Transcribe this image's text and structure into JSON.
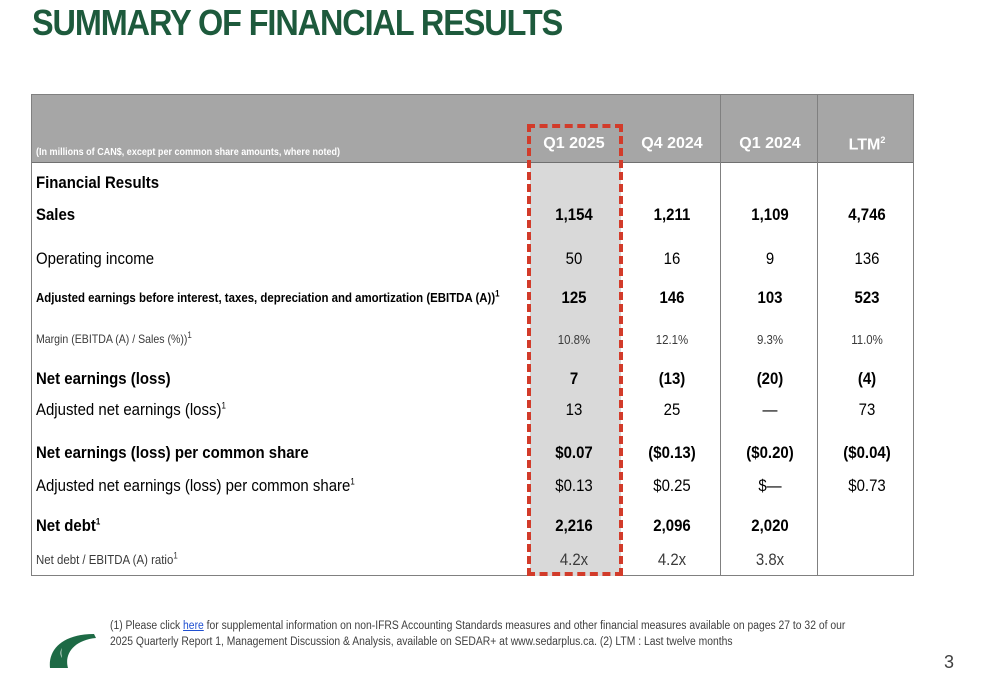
{
  "title": "SUMMARY OF FINANCIAL RESULTS",
  "table": {
    "note": "(In millions of CAN$, except per common share amounts, where noted)",
    "columns": [
      "Q1 2025",
      "Q4 2024",
      "Q1 2024",
      "LTM"
    ],
    "ltm_sup": "2",
    "section_heading": "Financial Results",
    "rows": [
      {
        "label": "Sales",
        "sup": "",
        "values": [
          "1,154",
          "1,211",
          "1,109",
          "4,746"
        ]
      },
      {
        "label": "Operating income",
        "sup": "",
        "values": [
          "50",
          "16",
          "9",
          "136"
        ]
      },
      {
        "label": "Adjusted earnings before interest, taxes, depreciation and amortization (EBITDA (A))",
        "sup": "1",
        "values": [
          "125",
          "146",
          "103",
          "523"
        ]
      },
      {
        "label": "Margin (EBITDA (A) / Sales (%))",
        "sup": "1",
        "values": [
          "10.8%",
          "12.1%",
          "9.3%",
          "11.0%"
        ]
      },
      {
        "label": "Net earnings (loss)",
        "sup": "",
        "values": [
          "7",
          "(13)",
          "(20)",
          "(4)"
        ]
      },
      {
        "label": "Adjusted net earnings (loss)",
        "sup": "1",
        "values": [
          "13",
          "25",
          "—",
          "73"
        ]
      },
      {
        "label": "Net earnings (loss) per common share",
        "sup": "",
        "values": [
          "$0.07",
          "($0.13)",
          "($0.20)",
          "($0.04)"
        ]
      },
      {
        "label": "Adjusted net earnings (loss) per common share",
        "sup": "1",
        "values": [
          "$0.13",
          "$0.25",
          "$—",
          "$0.73"
        ]
      },
      {
        "label": "Net debt",
        "sup": "1",
        "values": [
          "2,216",
          "2,096",
          "2,020",
          ""
        ]
      },
      {
        "label": "Net debt / EBITDA (A) ratio",
        "sup": "1",
        "values": [
          "4.2x",
          "4.2x",
          "3.8x",
          ""
        ]
      }
    ]
  },
  "footnote": {
    "pre_link": "(1) Please click ",
    "link_text": "here",
    "post_link": " for supplemental information on non-IFRS Accounting Standards measures and other financial measures available on pages 27 to 32 of our 2025 Quarterly Report 1, Management Discussion & Analysis, available on SEDAR+ at www.sedarplus.ca. (2) LTM : Last twelve months"
  },
  "page_number": "3",
  "colors": {
    "title": "#1d5a3c",
    "header_bg": "#a6a6a6",
    "highlight": "#d23b2a",
    "shade": "#d9d9d9",
    "logo": "#1d6a45"
  },
  "icons": {
    "logo": "company-logo-icon"
  }
}
